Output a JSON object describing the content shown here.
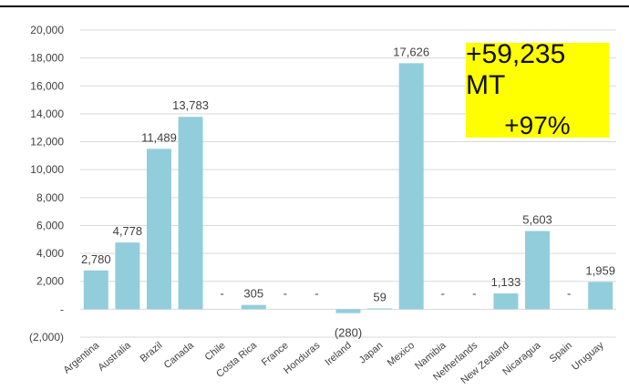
{
  "chart_data": {
    "type": "bar",
    "categories": [
      "Argentina",
      "Australia",
      "Brazil",
      "Canada",
      "Chile",
      "Costa Rica",
      "France",
      "Honduras",
      "Ireland",
      "Japan",
      "Mexico",
      "Namibia",
      "Netherlands",
      "New Zealand",
      "Nicaragua",
      "Spain",
      "Uruguay"
    ],
    "values": [
      2780,
      4778,
      11489,
      13783,
      0,
      305,
      0,
      0,
      -280,
      59,
      17626,
      0,
      0,
      1133,
      5603,
      0,
      1959
    ],
    "data_labels": [
      "2,780",
      "4,778",
      "11,489",
      "13,783",
      "-",
      "305",
      "-",
      "-",
      "(280)",
      "59",
      "17,626",
      "-",
      "-",
      "1,133",
      "5,603",
      "-",
      "1,959"
    ],
    "ylim": [
      -2000,
      20000
    ],
    "ytick_values": [
      -2000,
      0,
      2000,
      4000,
      6000,
      8000,
      10000,
      12000,
      14000,
      16000,
      18000,
      20000
    ],
    "ytick_labels": [
      "(2,000)",
      "-",
      "2,000",
      "4,000",
      "6,000",
      "8,000",
      "10,000",
      "12,000",
      "14,000",
      "16,000",
      "18,000",
      "20,000"
    ],
    "grid": true,
    "bar_color": "#92cddc",
    "grid_color": "#d9d9d9",
    "title": "",
    "xlabel": "",
    "ylabel": ""
  },
  "callout": {
    "line1": "+59,235 MT",
    "line2": "+97%",
    "background": "#ffff00"
  }
}
